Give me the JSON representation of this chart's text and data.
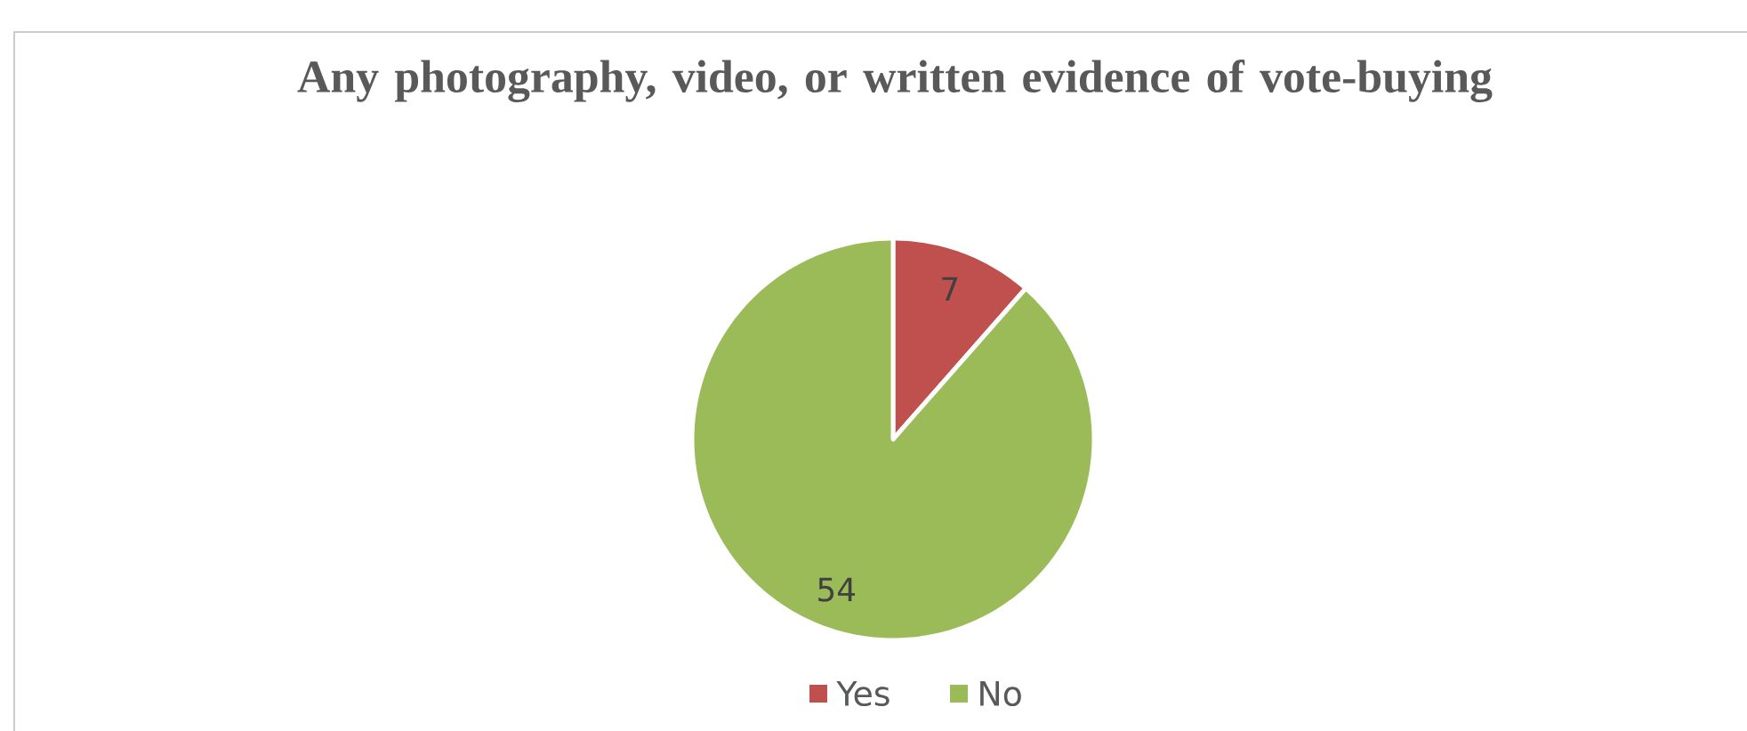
{
  "chart_data": {
    "type": "pie",
    "title": "Any photography, video, or written evidence of vote-buying",
    "categories": [
      "Yes",
      "No"
    ],
    "values": [
      7,
      54
    ],
    "colors": [
      "#c0504d",
      "#9bbb59"
    ],
    "data_labels": true,
    "legend": "bottom"
  }
}
